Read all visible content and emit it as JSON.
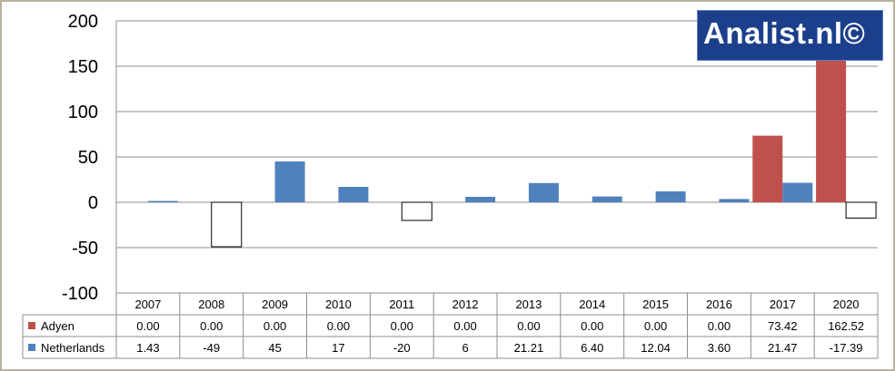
{
  "logo": {
    "text": "Analist.nl©"
  },
  "chart_data": {
    "type": "bar",
    "categories": [
      "2007",
      "2008",
      "2009",
      "2010",
      "2011",
      "2012",
      "2013",
      "2014",
      "2015",
      "2016",
      "2017",
      "2020"
    ],
    "series": [
      {
        "name": "Adyen",
        "color": "#c0504d",
        "values": [
          0,
          0,
          0,
          0,
          0,
          0,
          0,
          0,
          0,
          0,
          73.42,
          162.52
        ],
        "labels": [
          "0.00",
          "0.00",
          "0.00",
          "0.00",
          "0.00",
          "0.00",
          "0.00",
          "0.00",
          "0.00",
          "0.00",
          "73.42",
          "162.52"
        ]
      },
      {
        "name": "Netherlands",
        "color": "#4f81bd",
        "negative_fill": "#ffffff",
        "values": [
          1.43,
          -49,
          45,
          17,
          -20,
          6,
          21.21,
          6.4,
          12.04,
          3.6,
          21.47,
          -17.39
        ],
        "labels": [
          "1.43",
          "-49",
          "45",
          "17",
          "-20",
          "6",
          "21.21",
          "6.40",
          "12.04",
          "3.60",
          "21.47",
          "-17.39"
        ]
      }
    ],
    "ylim": [
      -100,
      200
    ],
    "yticks": [
      "200",
      "150",
      "100",
      "50",
      "0",
      "-50",
      "-100"
    ],
    "ytick_values": [
      200,
      150,
      100,
      50,
      0,
      -50,
      -100
    ],
    "grid": true,
    "legend": "data-table"
  }
}
